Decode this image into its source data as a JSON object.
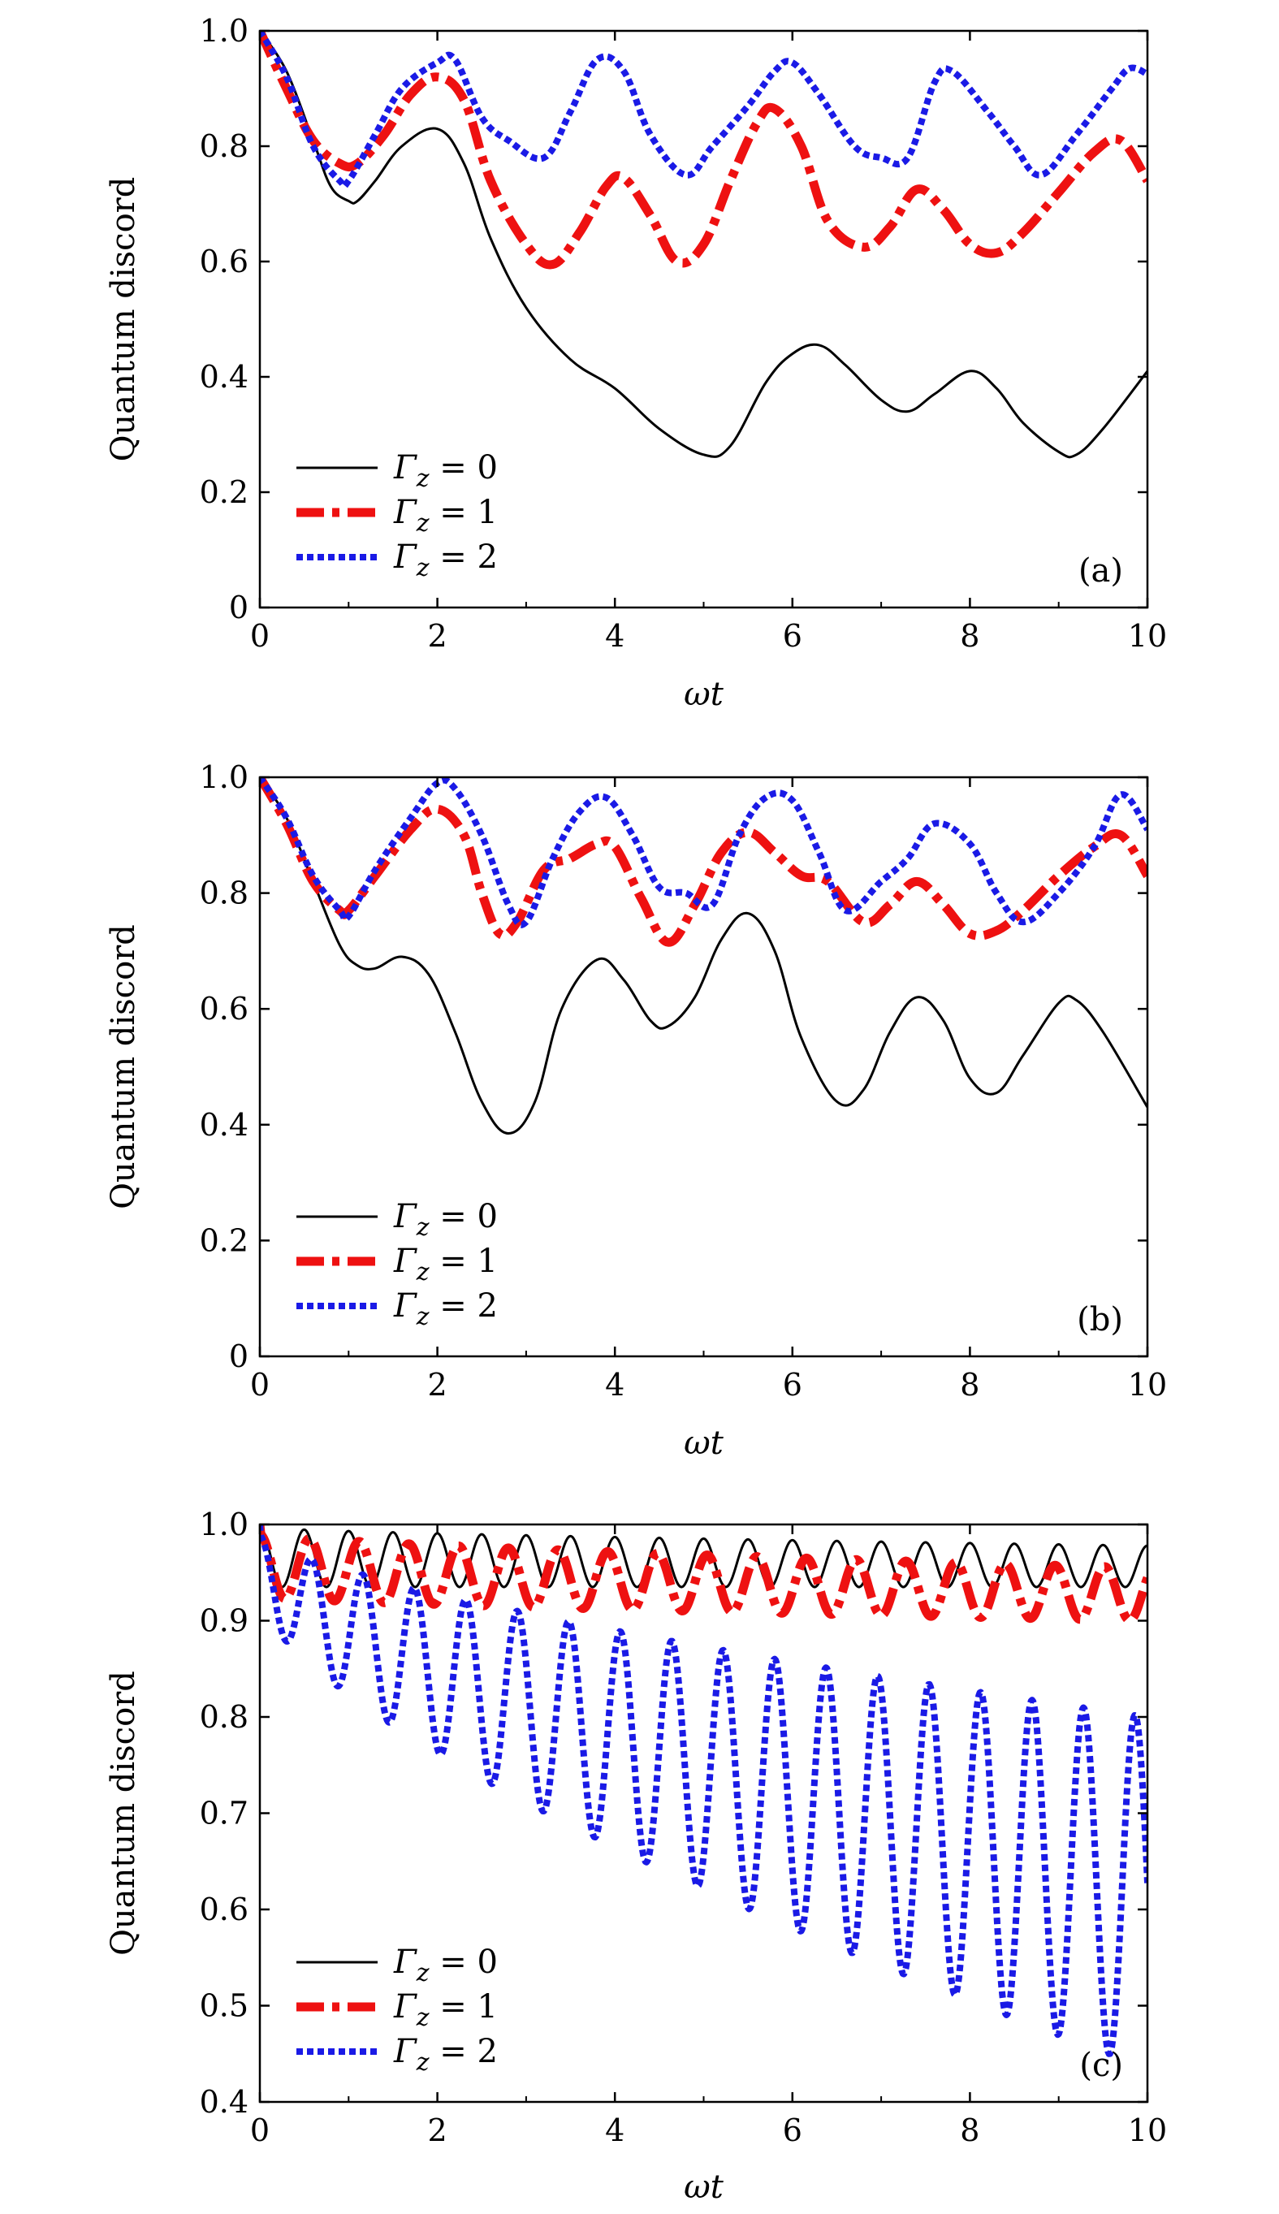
{
  "chart_data": [
    {
      "type": "line",
      "panel_label": "(a)",
      "xlabel": "ωt",
      "ylabel": "Quantum discord",
      "xlim": [
        0,
        10
      ],
      "ylim": [
        0,
        1.0
      ],
      "xticks": [
        "0",
        "2",
        "4",
        "6",
        "8",
        "10"
      ],
      "yticks": [
        "0",
        "0.2",
        "0.4",
        "0.6",
        "0.8",
        "1.0"
      ],
      "grid": false,
      "legend_position": "bottom-left",
      "series": [
        {
          "name": "Γz = 0",
          "color": "#000000",
          "style": "solid",
          "x": [
            0,
            0.3,
            0.6,
            0.8,
            1.0,
            1.1,
            1.3,
            1.6,
            2.0,
            2.3,
            2.6,
            3.0,
            3.5,
            4.0,
            4.5,
            5.0,
            5.3,
            5.7,
            6.0,
            6.3,
            6.6,
            7.0,
            7.3,
            7.6,
            8.0,
            8.3,
            8.6,
            9.0,
            9.2,
            9.5,
            10.0
          ],
          "y": [
            1.0,
            0.93,
            0.81,
            0.73,
            0.705,
            0.705,
            0.74,
            0.8,
            0.83,
            0.77,
            0.64,
            0.52,
            0.43,
            0.38,
            0.31,
            0.265,
            0.28,
            0.39,
            0.44,
            0.455,
            0.42,
            0.36,
            0.34,
            0.37,
            0.41,
            0.38,
            0.32,
            0.27,
            0.265,
            0.31,
            0.41
          ]
        },
        {
          "name": "Γz = 1",
          "color": "#ee1111",
          "style": "dashdot",
          "x": [
            0,
            0.3,
            0.6,
            0.9,
            1.1,
            1.4,
            1.7,
            2.0,
            2.3,
            2.6,
            3.0,
            3.3,
            3.6,
            3.9,
            4.1,
            4.4,
            4.7,
            5.0,
            5.3,
            5.6,
            5.8,
            6.1,
            6.4,
            6.8,
            7.1,
            7.4,
            7.7,
            8.0,
            8.3,
            8.6,
            9.0,
            9.4,
            9.7,
            10.0
          ],
          "y": [
            1.0,
            0.9,
            0.81,
            0.77,
            0.77,
            0.82,
            0.89,
            0.92,
            0.88,
            0.74,
            0.63,
            0.595,
            0.65,
            0.73,
            0.745,
            0.68,
            0.6,
            0.63,
            0.74,
            0.84,
            0.865,
            0.8,
            0.67,
            0.625,
            0.66,
            0.725,
            0.69,
            0.63,
            0.615,
            0.65,
            0.72,
            0.79,
            0.81,
            0.74
          ]
        },
        {
          "name": "Γz = 2",
          "color": "#1a1ae6",
          "style": "dotted",
          "x": [
            0,
            0.3,
            0.6,
            0.9,
            1.0,
            1.3,
            1.6,
            2.0,
            2.2,
            2.5,
            2.8,
            3.2,
            3.5,
            3.8,
            4.1,
            4.4,
            4.8,
            5.1,
            5.5,
            5.8,
            6.0,
            6.3,
            6.7,
            7.0,
            7.3,
            7.6,
            7.8,
            8.2,
            8.5,
            8.8,
            9.2,
            9.6,
            9.8,
            10.0
          ],
          "y": [
            1.0,
            0.92,
            0.8,
            0.74,
            0.74,
            0.82,
            0.9,
            0.945,
            0.95,
            0.85,
            0.81,
            0.78,
            0.86,
            0.95,
            0.93,
            0.82,
            0.75,
            0.8,
            0.87,
            0.93,
            0.945,
            0.89,
            0.8,
            0.78,
            0.78,
            0.91,
            0.93,
            0.86,
            0.8,
            0.75,
            0.82,
            0.9,
            0.935,
            0.925
          ]
        }
      ]
    },
    {
      "type": "line",
      "panel_label": "(b)",
      "xlabel": "ωt",
      "ylabel": "Quantum discord",
      "xlim": [
        0,
        10
      ],
      "ylim": [
        0,
        1.0
      ],
      "xticks": [
        "0",
        "2",
        "4",
        "6",
        "8",
        "10"
      ],
      "yticks": [
        "0",
        "0.2",
        "0.4",
        "0.6",
        "0.8",
        "1.0"
      ],
      "grid": false,
      "legend_position": "bottom-left",
      "series": [
        {
          "name": "Γz = 0",
          "color": "#000000",
          "style": "solid",
          "x": [
            0,
            0.3,
            0.6,
            0.9,
            1.1,
            1.3,
            1.6,
            1.9,
            2.2,
            2.5,
            2.8,
            3.1,
            3.4,
            3.8,
            4.1,
            4.4,
            4.6,
            4.9,
            5.2,
            5.5,
            5.8,
            6.1,
            6.5,
            6.8,
            7.1,
            7.4,
            7.7,
            8.0,
            8.3,
            8.6,
            9.0,
            9.2,
            9.5,
            10.0
          ],
          "y": [
            1.0,
            0.93,
            0.82,
            0.71,
            0.675,
            0.67,
            0.69,
            0.66,
            0.56,
            0.44,
            0.385,
            0.44,
            0.6,
            0.685,
            0.65,
            0.58,
            0.57,
            0.62,
            0.72,
            0.765,
            0.7,
            0.55,
            0.44,
            0.46,
            0.56,
            0.62,
            0.58,
            0.48,
            0.455,
            0.52,
            0.61,
            0.615,
            0.56,
            0.43
          ]
        },
        {
          "name": "Γz = 1",
          "color": "#ee1111",
          "style": "dashdot",
          "x": [
            0,
            0.3,
            0.6,
            0.9,
            1.0,
            1.3,
            1.7,
            2.0,
            2.3,
            2.5,
            2.7,
            2.9,
            3.2,
            3.5,
            3.8,
            4.0,
            4.3,
            4.6,
            4.9,
            5.2,
            5.5,
            5.8,
            6.1,
            6.4,
            6.8,
            7.1,
            7.4,
            7.7,
            8.0,
            8.3,
            8.6,
            9.0,
            9.4,
            9.7,
            10.0
          ],
          "y": [
            1.0,
            0.92,
            0.82,
            0.77,
            0.77,
            0.83,
            0.91,
            0.945,
            0.9,
            0.8,
            0.73,
            0.75,
            0.84,
            0.86,
            0.885,
            0.88,
            0.79,
            0.715,
            0.78,
            0.87,
            0.905,
            0.87,
            0.83,
            0.82,
            0.75,
            0.78,
            0.82,
            0.78,
            0.73,
            0.735,
            0.77,
            0.83,
            0.88,
            0.9,
            0.83
          ]
        },
        {
          "name": "Γz = 2",
          "color": "#1a1ae6",
          "style": "dotted",
          "x": [
            0,
            0.3,
            0.6,
            0.9,
            1.0,
            1.3,
            1.7,
            2.0,
            2.2,
            2.5,
            2.8,
            3.0,
            3.3,
            3.6,
            3.9,
            4.2,
            4.5,
            4.8,
            5.1,
            5.4,
            5.7,
            6.0,
            6.3,
            6.6,
            7.0,
            7.3,
            7.6,
            8.0,
            8.3,
            8.6,
            9.0,
            9.4,
            9.7,
            10.0
          ],
          "y": [
            1.0,
            0.93,
            0.83,
            0.77,
            0.76,
            0.84,
            0.93,
            0.99,
            0.98,
            0.9,
            0.78,
            0.75,
            0.86,
            0.94,
            0.965,
            0.9,
            0.81,
            0.8,
            0.78,
            0.9,
            0.965,
            0.96,
            0.87,
            0.77,
            0.82,
            0.86,
            0.92,
            0.885,
            0.8,
            0.75,
            0.8,
            0.88,
            0.97,
            0.91
          ]
        }
      ]
    },
    {
      "type": "line",
      "panel_label": "(c)",
      "xlabel": "ωt",
      "ylabel": "Quantum discord",
      "xlim": [
        0,
        10
      ],
      "ylim": [
        0.4,
        1.0
      ],
      "xticks": [
        "0",
        "2",
        "4",
        "6",
        "8",
        "10"
      ],
      "yticks": [
        "0.4",
        "0.5",
        "0.6",
        "0.7",
        "0.8",
        "0.9",
        "1.0"
      ],
      "grid": false,
      "legend_position": "bottom-left",
      "series": [
        {
          "name": "Γz = 0",
          "color": "#000000",
          "style": "solid",
          "oscillation": {
            "period": 0.5,
            "upper": [
              0.997,
              0.978
            ],
            "lower": [
              0.935,
              0.935
            ]
          }
        },
        {
          "name": "Γz = 1",
          "color": "#ee1111",
          "style": "dashdot",
          "oscillation": {
            "period": 0.56,
            "upper": [
              0.99,
              0.955
            ],
            "lower": [
              0.925,
              0.9
            ]
          }
        },
        {
          "name": "Γz = 2",
          "color": "#1a1ae6",
          "style": "dotted",
          "oscillation": {
            "period": 0.58,
            "upper": [
              0.99,
              0.8
            ],
            "lower": [
              0.92,
              0.435
            ]
          }
        }
      ]
    }
  ],
  "legend_labels": {
    "s0": {
      "symbol": "Γ",
      "sub": "z",
      "eq": " = 0"
    },
    "s1": {
      "symbol": "Γ",
      "sub": "z",
      "eq": " = 1"
    },
    "s2": {
      "symbol": "Γ",
      "sub": "z",
      "eq": " = 2"
    }
  }
}
